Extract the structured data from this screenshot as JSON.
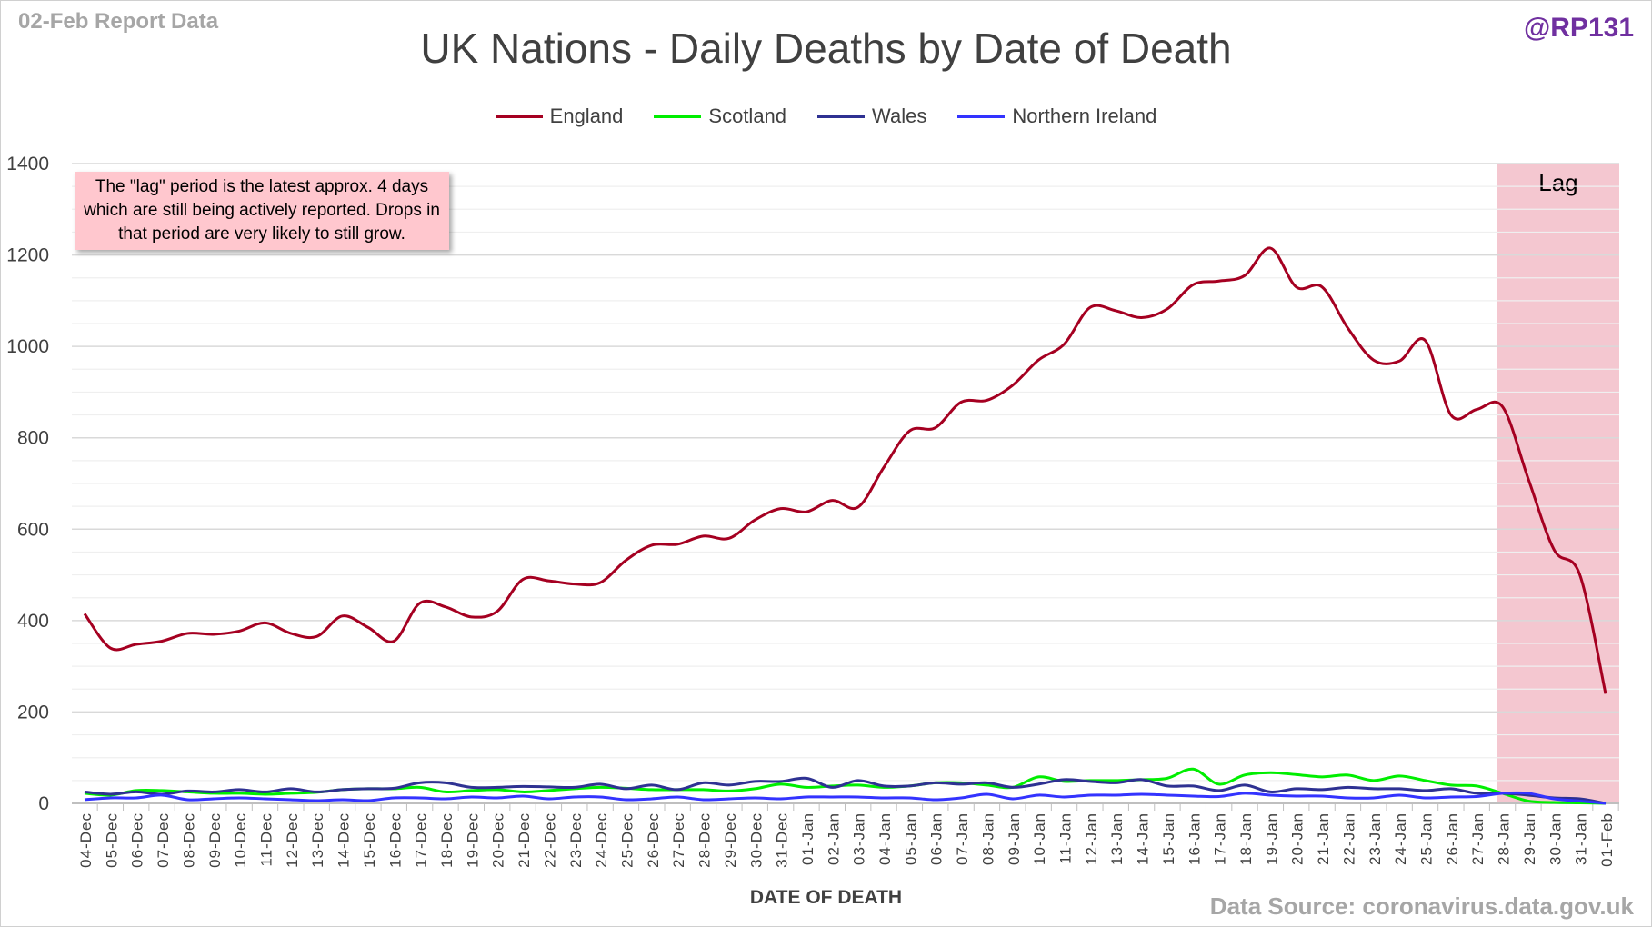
{
  "header": {
    "report_label": "02-Feb Report Data",
    "handle": "@RP131"
  },
  "footer": {
    "source": "Data Source: coronavirus.data.gov.uk"
  },
  "annotation": {
    "text": "The \"lag\" period is the latest approx. 4 days which are still being actively reported.  Drops in that period are very likely to still grow.",
    "lag_label": "Lag",
    "lag_start": "28-Jan",
    "lag_end": "01-Feb",
    "lag_color": "#f4c7d0"
  },
  "chart_data": {
    "type": "line",
    "title": "UK Nations - Daily Deaths by Date of Death",
    "xlabel": "DATE OF DEATH",
    "ylabel": "",
    "ylim": [
      0,
      1400
    ],
    "yticks": [
      0,
      200,
      400,
      600,
      800,
      1000,
      1200,
      1400
    ],
    "grid": true,
    "legend": "top",
    "categories": [
      "04-Dec",
      "05-Dec",
      "06-Dec",
      "07-Dec",
      "08-Dec",
      "09-Dec",
      "10-Dec",
      "11-Dec",
      "12-Dec",
      "13-Dec",
      "14-Dec",
      "15-Dec",
      "16-Dec",
      "17-Dec",
      "18-Dec",
      "19-Dec",
      "20-Dec",
      "21-Dec",
      "22-Dec",
      "23-Dec",
      "24-Dec",
      "25-Dec",
      "26-Dec",
      "27-Dec",
      "28-Dec",
      "29-Dec",
      "30-Dec",
      "31-Dec",
      "01-Jan",
      "02-Jan",
      "03-Jan",
      "04-Jan",
      "05-Jan",
      "06-Jan",
      "07-Jan",
      "08-Jan",
      "09-Jan",
      "10-Jan",
      "11-Jan",
      "12-Jan",
      "13-Jan",
      "14-Jan",
      "15-Jan",
      "16-Jan",
      "17-Jan",
      "18-Jan",
      "19-Jan",
      "20-Jan",
      "21-Jan",
      "22-Jan",
      "23-Jan",
      "24-Jan",
      "25-Jan",
      "26-Jan",
      "27-Jan",
      "28-Jan",
      "29-Jan",
      "30-Jan",
      "31-Jan",
      "01-Feb"
    ],
    "series": [
      {
        "name": "England",
        "color": "#a50021",
        "values": [
          415,
          340,
          348,
          355,
          372,
          370,
          377,
          395,
          372,
          365,
          410,
          385,
          355,
          438,
          430,
          408,
          420,
          490,
          487,
          480,
          483,
          532,
          565,
          567,
          585,
          580,
          620,
          645,
          638,
          663,
          648,
          735,
          815,
          822,
          878,
          882,
          915,
          970,
          1005,
          1085,
          1078,
          1063,
          1082,
          1135,
          1143,
          1155,
          1215,
          1130,
          1130,
          1040,
          970,
          968,
          1013,
          850,
          862,
          868,
          710,
          555,
          500,
          240
        ]
      },
      {
        "name": "Scotland",
        "color": "#00ee00",
        "values": [
          22,
          18,
          28,
          28,
          25,
          22,
          22,
          20,
          22,
          24,
          30,
          32,
          32,
          35,
          25,
          28,
          30,
          25,
          28,
          32,
          35,
          33,
          30,
          30,
          30,
          27,
          32,
          42,
          35,
          38,
          40,
          35,
          38,
          45,
          45,
          40,
          35,
          58,
          48,
          50,
          50,
          52,
          55,
          75,
          42,
          62,
          67,
          63,
          58,
          62,
          50,
          60,
          50,
          40,
          38,
          22,
          5,
          2,
          1,
          0
        ]
      },
      {
        "name": "Wales",
        "color": "#2e3192",
        "values": [
          25,
          20,
          25,
          20,
          27,
          25,
          30,
          25,
          32,
          25,
          30,
          32,
          33,
          45,
          45,
          35,
          35,
          37,
          36,
          35,
          42,
          32,
          40,
          30,
          45,
          40,
          48,
          48,
          55,
          35,
          50,
          38,
          38,
          45,
          42,
          45,
          35,
          42,
          52,
          48,
          45,
          52,
          38,
          38,
          28,
          40,
          25,
          32,
          30,
          35,
          32,
          32,
          28,
          32,
          22,
          22,
          18,
          12,
          10,
          0
        ]
      },
      {
        "name": "Northern Ireland",
        "color": "#3333ff",
        "values": [
          8,
          12,
          12,
          18,
          8,
          10,
          12,
          10,
          8,
          6,
          8,
          6,
          12,
          12,
          10,
          14,
          12,
          16,
          10,
          14,
          14,
          8,
          10,
          14,
          8,
          10,
          12,
          10,
          14,
          14,
          14,
          12,
          12,
          8,
          12,
          20,
          10,
          18,
          14,
          18,
          18,
          20,
          18,
          16,
          15,
          22,
          18,
          16,
          16,
          12,
          12,
          18,
          12,
          14,
          15,
          22,
          22,
          10,
          5,
          0
        ]
      }
    ]
  }
}
